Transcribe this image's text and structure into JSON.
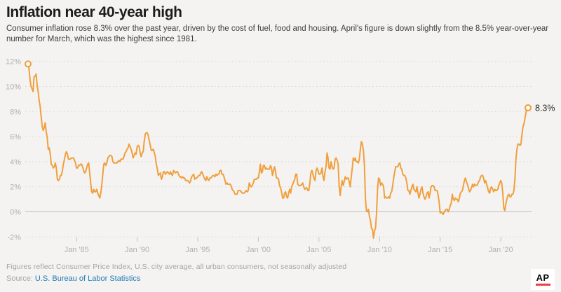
{
  "header": {
    "title": "Inflation near 40-year high",
    "subtitle": "Consumer inflation rose 8.3% over the past year, driven by the cost of fuel, food and housing. April's figure is down slightly from the 8.5% year-over-year number for March, which was the highest since 1981."
  },
  "colors": {
    "background": "#F4F3F1",
    "line_orange": "#EFA03E",
    "link_blue": "#1F7AB8",
    "ap_red": "#EF3E42"
  },
  "chart_data": {
    "type": "line",
    "title": "Inflation near 40-year high",
    "series_name": "U.S. Consumer Price Index, year-over-year % change",
    "unit": "%",
    "frequency": "monthly",
    "start": "Jan 1981",
    "end": "Apr 2022",
    "legend": "none",
    "grid": "dotted horizontal",
    "end_label": "8.3%",
    "latest_value": 8.3,
    "colors": {
      "line": "#EFA03E",
      "grid": "#D8D6D2",
      "zero_line": "#C2C0BC",
      "tick": "#C6C4C0",
      "marker_fill": "#FBFAF8"
    },
    "y_axis": {
      "ticks": [
        12,
        10,
        8,
        6,
        4,
        2,
        0,
        -2
      ],
      "labels": [
        "12%",
        "10%",
        "8%",
        "6%",
        "4%",
        "2%",
        "0%",
        "-2%"
      ],
      "range": [
        -2,
        12
      ]
    },
    "x_axis": {
      "start_year": 1981,
      "ticks": [
        {
          "label": "Jan '85",
          "year": 1985
        },
        {
          "label": "Jan '90",
          "year": 1990
        },
        {
          "label": "Jan '95",
          "year": 1995
        },
        {
          "label": "Jan '00",
          "year": 2000
        },
        {
          "label": "Jan '05",
          "year": 2005
        },
        {
          "label": "Jan '10",
          "year": 2010
        },
        {
          "label": "Jan '15",
          "year": 2015
        },
        {
          "label": "Jan '20",
          "year": 2020
        }
      ]
    },
    "values_by_year": {
      "1981": [
        11.8,
        11.4,
        10.5,
        10.0,
        9.8,
        9.6,
        10.8,
        10.8,
        11.0,
        10.1,
        9.6,
        8.9
      ],
      "1982": [
        8.4,
        7.6,
        6.8,
        6.5,
        6.7,
        7.1,
        6.4,
        5.9,
        5.0,
        5.1,
        4.6,
        3.8
      ],
      "1983": [
        3.7,
        3.5,
        3.6,
        3.9,
        3.5,
        2.6,
        2.5,
        2.6,
        2.9,
        2.9,
        3.3,
        3.8
      ],
      "1984": [
        4.2,
        4.6,
        4.8,
        4.6,
        4.2,
        4.2,
        4.2,
        4.3,
        4.3,
        4.3,
        4.1,
        3.9
      ],
      "1985": [
        3.5,
        3.5,
        3.7,
        3.7,
        3.8,
        3.8,
        3.6,
        3.3,
        3.1,
        3.2,
        3.5,
        3.8
      ],
      "1986": [
        3.9,
        3.1,
        2.3,
        1.6,
        1.5,
        1.8,
        1.6,
        1.6,
        1.8,
        1.5,
        1.3,
        1.1
      ],
      "1987": [
        1.5,
        2.1,
        3.0,
        3.8,
        3.9,
        3.7,
        3.9,
        4.3,
        4.4,
        4.5,
        4.5,
        4.4
      ],
      "1988": [
        4.0,
        3.9,
        3.9,
        3.9,
        3.9,
        4.0,
        4.1,
        4.0,
        4.2,
        4.2,
        4.2,
        4.4
      ],
      "1989": [
        4.7,
        4.8,
        5.0,
        5.1,
        5.4,
        5.2,
        5.0,
        4.7,
        4.3,
        4.5,
        4.7,
        4.6
      ],
      "1990": [
        5.2,
        5.3,
        5.2,
        4.7,
        4.4,
        4.7,
        4.8,
        5.6,
        6.2,
        6.3,
        6.3,
        6.1
      ],
      "1991": [
        5.7,
        5.3,
        4.9,
        4.9,
        5.0,
        4.7,
        4.4,
        3.8,
        3.4,
        2.9,
        3.0,
        3.1
      ],
      "1992": [
        2.6,
        2.8,
        3.2,
        3.2,
        3.0,
        3.1,
        3.2,
        3.1,
        3.0,
        3.2,
        3.0,
        2.9
      ],
      "1993": [
        3.3,
        3.2,
        3.1,
        3.2,
        3.2,
        3.0,
        2.8,
        2.8,
        2.7,
        2.8,
        2.7,
        2.7
      ],
      "1994": [
        2.5,
        2.5,
        2.5,
        2.4,
        2.3,
        2.5,
        2.8,
        2.9,
        3.0,
        2.6,
        2.7,
        2.7
      ],
      "1995": [
        2.8,
        2.9,
        2.9,
        3.1,
        3.2,
        3.0,
        2.8,
        2.6,
        2.5,
        2.8,
        2.6,
        2.5
      ],
      "1996": [
        2.7,
        2.7,
        2.8,
        2.9,
        2.9,
        2.8,
        3.0,
        2.9,
        3.0,
        3.0,
        3.3,
        3.3
      ],
      "1997": [
        3.0,
        3.0,
        2.8,
        2.5,
        2.2,
        2.3,
        2.2,
        2.2,
        2.2,
        2.1,
        1.8,
        1.7
      ],
      "1998": [
        1.6,
        1.4,
        1.4,
        1.4,
        1.7,
        1.7,
        1.7,
        1.6,
        1.5,
        1.5,
        1.5,
        1.6
      ],
      "1999": [
        1.7,
        1.6,
        1.7,
        2.3,
        2.1,
        2.0,
        2.1,
        2.3,
        2.6,
        2.6,
        2.6,
        2.7
      ],
      "2000": [
        2.7,
        3.2,
        3.8,
        3.1,
        3.2,
        3.7,
        3.7,
        3.4,
        3.5,
        3.4,
        3.4,
        3.4
      ],
      "2001": [
        3.7,
        3.5,
        2.9,
        3.3,
        3.6,
        3.2,
        2.7,
        2.7,
        2.6,
        2.1,
        1.9,
        1.6
      ],
      "2002": [
        1.1,
        1.1,
        1.5,
        1.6,
        1.2,
        1.1,
        1.5,
        1.8,
        1.5,
        2.0,
        2.2,
        2.4
      ],
      "2003": [
        2.6,
        3.0,
        3.0,
        2.2,
        2.1,
        2.1,
        2.1,
        2.2,
        2.3,
        2.0,
        1.8,
        1.9
      ],
      "2004": [
        1.9,
        1.7,
        1.7,
        2.3,
        3.1,
        3.3,
        3.0,
        2.7,
        2.5,
        3.2,
        3.5,
        3.3
      ],
      "2005": [
        3.0,
        3.0,
        3.1,
        3.5,
        2.8,
        2.5,
        3.2,
        3.6,
        4.7,
        4.3,
        3.5,
        3.4
      ],
      "2006": [
        4.0,
        3.6,
        3.4,
        3.5,
        4.2,
        4.3,
        4.1,
        3.8,
        2.1,
        1.3,
        2.0,
        2.5
      ],
      "2007": [
        2.1,
        2.4,
        2.8,
        2.6,
        2.7,
        2.7,
        2.4,
        2.0,
        2.8,
        3.5,
        4.3,
        4.1
      ],
      "2008": [
        4.3,
        4.0,
        4.0,
        3.9,
        4.2,
        5.0,
        5.6,
        5.4,
        4.9,
        3.7,
        1.1,
        0.1
      ],
      "2009": [
        0.0,
        0.2,
        -0.4,
        -0.7,
        -1.3,
        -1.4,
        -2.1,
        -1.5,
        -1.3,
        -0.2,
        1.8,
        2.7
      ],
      "2010": [
        2.6,
        2.1,
        2.3,
        2.2,
        2.0,
        1.1,
        1.2,
        1.1,
        1.1,
        1.2,
        1.1,
        1.5
      ],
      "2011": [
        1.6,
        2.1,
        2.7,
        3.2,
        3.6,
        3.6,
        3.6,
        3.8,
        3.9,
        3.5,
        3.4,
        3.0
      ],
      "2012": [
        2.9,
        2.9,
        2.7,
        2.3,
        1.7,
        1.7,
        1.4,
        1.7,
        2.0,
        2.2,
        1.8,
        1.7
      ],
      "2013": [
        1.6,
        2.0,
        1.5,
        1.1,
        1.4,
        1.8,
        2.0,
        1.5,
        1.2,
        1.0,
        1.2,
        1.5
      ],
      "2014": [
        1.6,
        1.1,
        1.5,
        2.0,
        2.1,
        2.1,
        2.0,
        1.7,
        1.7,
        1.7,
        1.3,
        0.8
      ],
      "2015": [
        -0.1,
        0.0,
        -0.1,
        -0.2,
        0.0,
        0.1,
        0.2,
        0.2,
        0.0,
        0.2,
        0.5,
        0.7
      ],
      "2016": [
        1.4,
        1.0,
        0.9,
        1.1,
        1.0,
        1.0,
        0.8,
        1.1,
        1.5,
        1.6,
        1.7,
        2.1
      ],
      "2017": [
        2.5,
        2.7,
        2.4,
        2.2,
        1.9,
        1.6,
        1.7,
        1.9,
        2.2,
        2.0,
        2.2,
        2.1
      ],
      "2018": [
        2.1,
        2.2,
        2.4,
        2.5,
        2.8,
        2.9,
        2.9,
        2.7,
        2.3,
        2.5,
        2.2,
        1.9
      ],
      "2019": [
        1.6,
        1.5,
        1.9,
        2.0,
        1.8,
        1.6,
        1.8,
        1.7,
        1.7,
        1.8,
        2.1,
        2.3
      ],
      "2020": [
        2.5,
        2.3,
        1.5,
        0.3,
        0.1,
        0.6,
        1.0,
        1.3,
        1.4,
        1.2,
        1.2,
        1.4
      ],
      "2021": [
        1.4,
        1.7,
        2.6,
        4.2,
        5.0,
        5.4,
        5.4,
        5.3,
        5.4,
        6.2,
        6.8,
        7.0
      ],
      "2022": [
        7.5,
        7.9,
        8.5,
        8.3
      ]
    }
  },
  "footer": {
    "note": "Figures reflect Consumer Price Index, U.S. city average, all urban consumers, not seasonally adjusted",
    "source_label": "Source:",
    "source_link": "U.S. Bureau of Labor Statistics",
    "logo_text": "AP"
  }
}
